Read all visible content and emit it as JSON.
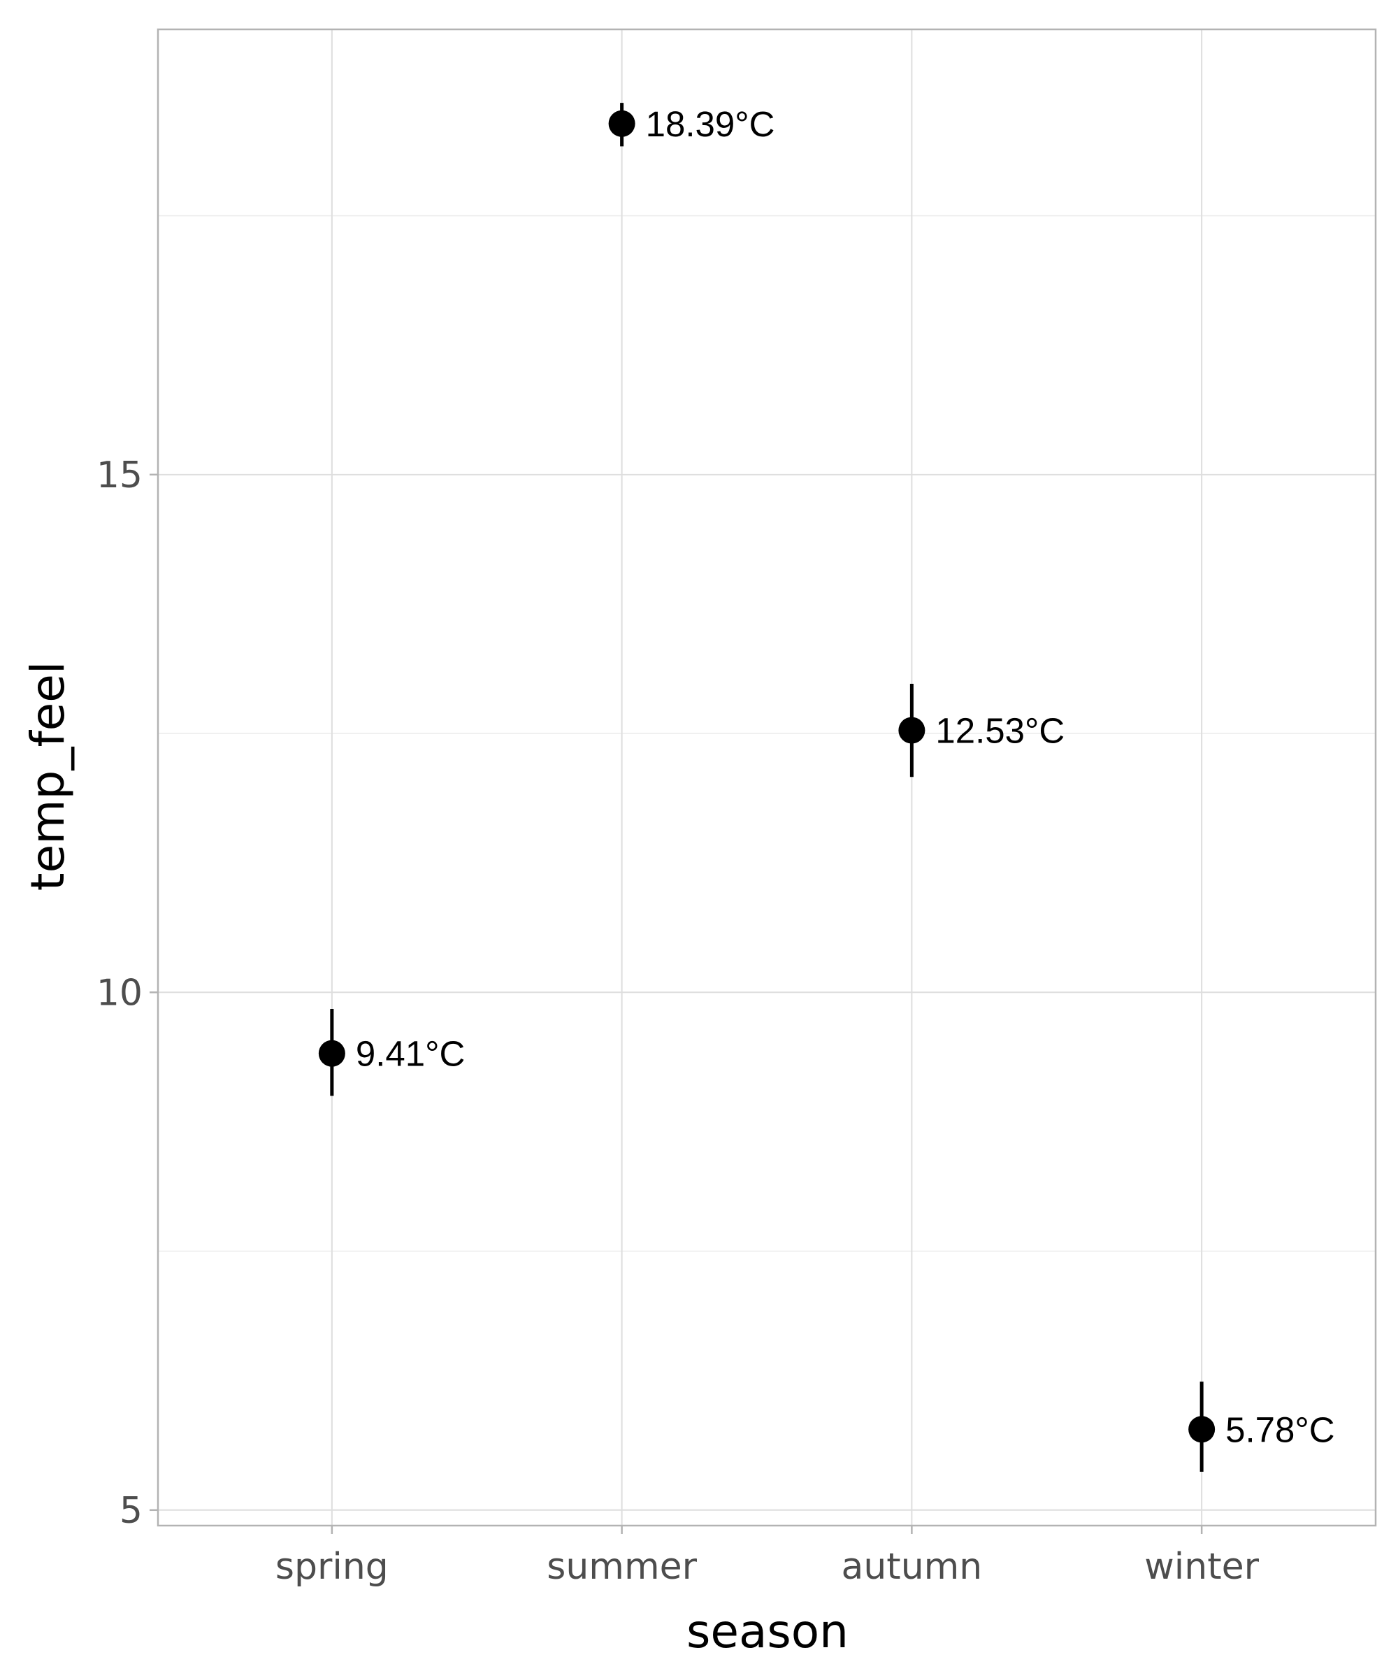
{
  "chart_data": {
    "type": "scatter",
    "title": "",
    "xlabel": "season",
    "ylabel": "temp_feel",
    "categories": [
      "spring",
      "summer",
      "autumn",
      "winter"
    ],
    "values": [
      9.41,
      18.39,
      12.53,
      5.78
    ],
    "error_low": [
      9.0,
      18.17,
      12.08,
      5.37
    ],
    "error_high": [
      9.84,
      18.59,
      12.98,
      6.24
    ],
    "data_labels": [
      "9.41°C",
      "18.39°C",
      "12.53°C",
      "5.78°C"
    ],
    "ylim": [
      4.85,
      19.3
    ],
    "y_ticks": [
      5,
      10,
      15
    ],
    "y_tick_labels": [
      "5",
      "10",
      "15"
    ],
    "y_minor_ticks": [
      7.5,
      12.5,
      17.5
    ],
    "grid": true,
    "legend": "none",
    "colors": {
      "point": "#000000",
      "grid": "#dedede",
      "border": "#b3b3b3",
      "tick_text": "#4d4d4d"
    }
  }
}
